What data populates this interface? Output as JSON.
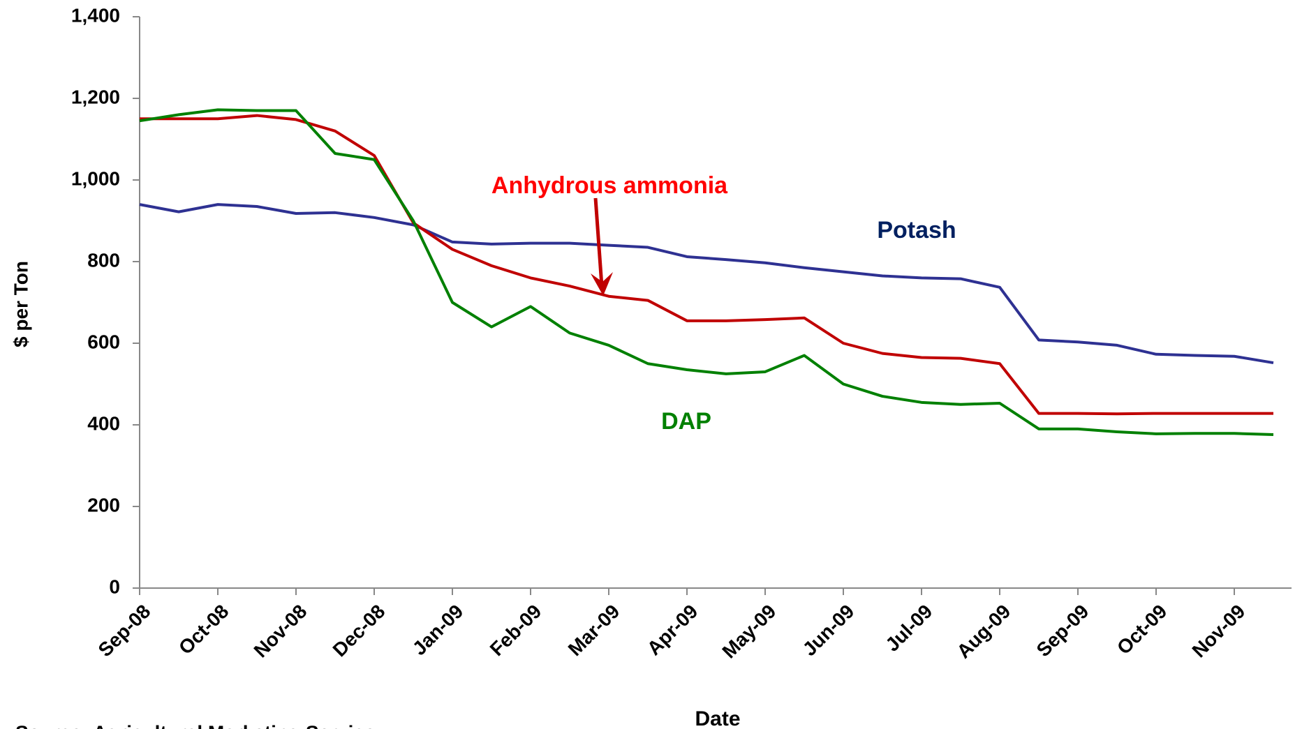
{
  "chart_data": {
    "type": "line",
    "x_label": "Date",
    "y_label": "$ per Ton",
    "source": "Source: Agricultural Marketing Service",
    "categories": [
      "Sep-08",
      null,
      "Oct-08",
      null,
      "Nov-08",
      null,
      "Dec-08",
      null,
      "Jan-09",
      null,
      "Feb-09",
      null,
      "Mar-09",
      null,
      "Apr-09",
      null,
      "May-09",
      null,
      "Jun-09",
      null,
      "Jul-09",
      null,
      "Aug-09",
      null,
      "Sep-09",
      null,
      "Oct-09",
      null,
      "Nov-09",
      null
    ],
    "series": [
      {
        "name": "Potash",
        "color": "#2e3192",
        "label_color": "#002060",
        "values": [
          940,
          922,
          940,
          935,
          918,
          920,
          908,
          890,
          848,
          843,
          845,
          845,
          840,
          835,
          812,
          805,
          797,
          785,
          775,
          765,
          760,
          758,
          737,
          608,
          603,
          595,
          573,
          570,
          568,
          552
        ]
      },
      {
        "name": "Anhydrous ammonia",
        "color": "#c00000",
        "label_color": "#ff0000",
        "values": [
          1150,
          1150,
          1150,
          1158,
          1148,
          1120,
          1060,
          895,
          830,
          790,
          760,
          740,
          715,
          705,
          655,
          655,
          658,
          662,
          600,
          575,
          565,
          563,
          550,
          428,
          428,
          427,
          428,
          428,
          428,
          428
        ]
      },
      {
        "name": "DAP",
        "color": "#008000",
        "label_color": "#008000",
        "values": [
          1145,
          1160,
          1172,
          1170,
          1170,
          1065,
          1050,
          900,
          700,
          640,
          690,
          625,
          595,
          550,
          535,
          525,
          530,
          570,
          500,
          470,
          455,
          450,
          453,
          390,
          390,
          383,
          378,
          379,
          379,
          376
        ]
      }
    ],
    "ylim": [
      0,
      1400
    ],
    "yticks": [
      0,
      200,
      400,
      600,
      800,
      {
        "value": 1000,
        "label": "1,000"
      },
      {
        "value": 1200,
        "label": "1,200"
      },
      {
        "value": 1400,
        "label": "1,400"
      }
    ]
  }
}
